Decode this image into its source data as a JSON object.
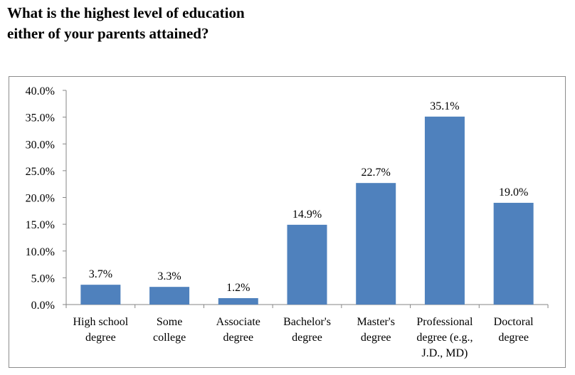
{
  "title_lines": [
    "What is the highest level of education",
    "either of your parents attained?"
  ],
  "chart_data": {
    "type": "bar",
    "title": "What is the highest level of education either of your parents attained?",
    "categories": [
      [
        "High school",
        "degree"
      ],
      [
        "Some",
        "college"
      ],
      [
        "Associate",
        "degree"
      ],
      [
        "Bachelor's",
        "degree"
      ],
      [
        "Master's",
        "degree"
      ],
      [
        "Professional",
        "degree (e.g.,",
        "J.D., MD)"
      ],
      [
        "Doctoral",
        "degree"
      ]
    ],
    "values": [
      3.7,
      3.3,
      1.2,
      14.9,
      22.7,
      35.1,
      19.0
    ],
    "data_labels": [
      "3.7%",
      "3.3%",
      "1.2%",
      "14.9%",
      "22.7%",
      "35.1%",
      "19.0%"
    ],
    "y_ticks": [
      "0.0%",
      "5.0%",
      "10.0%",
      "15.0%",
      "20.0%",
      "25.0%",
      "30.0%",
      "35.0%",
      "40.0%"
    ],
    "ylim": [
      0,
      40
    ],
    "grid": false,
    "legend": "none",
    "bar_color": "#4f81bd",
    "axis_color": "#868686"
  }
}
